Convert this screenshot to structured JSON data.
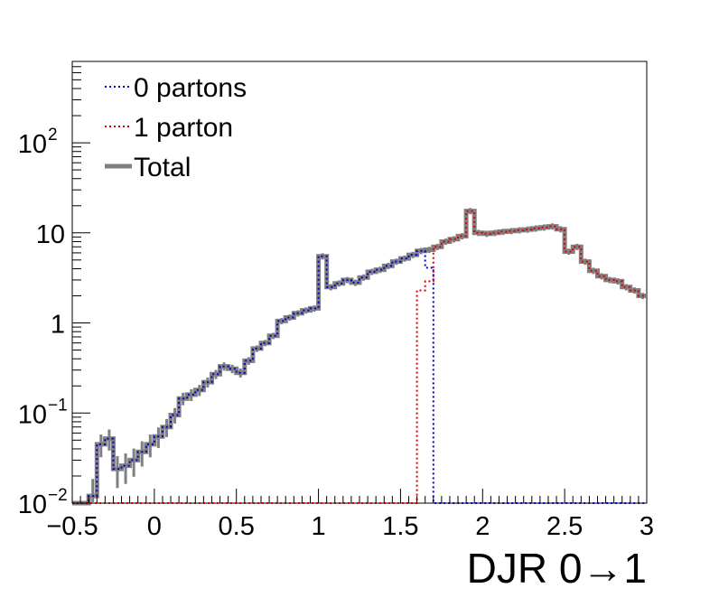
{
  "chart_data": {
    "type": "line",
    "title": "",
    "xlabel": "DJR 0→1",
    "ylabel": "",
    "xlim": [
      -0.5,
      3.0
    ],
    "ylim": [
      0.01,
      800
    ],
    "y_scale": "log",
    "grid": false,
    "legend_position": "top-left",
    "x_tick_labels": [
      "−0.5",
      "0",
      "0.5",
      "1",
      "1.5",
      "2",
      "2.5",
      "3"
    ],
    "x_tick_values": [
      -0.5,
      0,
      0.5,
      1,
      1.5,
      2,
      2.5,
      3
    ],
    "y_tick_labels": [
      {
        "value": 0.01,
        "base": "10",
        "exp": "−2"
      },
      {
        "value": 0.1,
        "base": "10",
        "exp": "−1"
      },
      {
        "value": 1,
        "base": "1",
        "exp": ""
      },
      {
        "value": 10,
        "base": "10",
        "exp": ""
      },
      {
        "value": 100,
        "base": "10",
        "exp": "2"
      }
    ],
    "bin_edges_start": -0.5,
    "bin_width": 0.05,
    "series": [
      {
        "name": "0 partons",
        "color": "#0000cc",
        "style": "dotted",
        "values": [
          0.01,
          0.01,
          0.012,
          0.045,
          0.052,
          0.024,
          0.026,
          0.03,
          0.037,
          0.045,
          0.055,
          0.07,
          0.095,
          0.145,
          0.16,
          0.18,
          0.22,
          0.27,
          0.33,
          0.31,
          0.28,
          0.38,
          0.52,
          0.6,
          0.72,
          1.05,
          1.15,
          1.28,
          1.38,
          1.45,
          5.5,
          2.5,
          2.75,
          3.0,
          2.8,
          3.2,
          3.7,
          3.9,
          4.3,
          4.8,
          5.2,
          5.7,
          6.3,
          4.1,
          0.01,
          0.01,
          0.01,
          0.01,
          0.01,
          0.01,
          0.01,
          0.01,
          0.01,
          0.01,
          0.01,
          0.01,
          0.01,
          0.01,
          0.01,
          0.01,
          0.01,
          0.01,
          0.01,
          0.01,
          0.01,
          0.01,
          0.01,
          0.01,
          0.01,
          0.01
        ]
      },
      {
        "name": "1 parton",
        "color": "#dd0000",
        "style": "dotted",
        "values": [
          0.01,
          0.01,
          0.01,
          0.01,
          0.01,
          0.01,
          0.01,
          0.01,
          0.01,
          0.01,
          0.01,
          0.01,
          0.01,
          0.01,
          0.01,
          0.01,
          0.01,
          0.01,
          0.01,
          0.01,
          0.01,
          0.01,
          0.01,
          0.01,
          0.01,
          0.01,
          0.01,
          0.01,
          0.01,
          0.01,
          0.01,
          0.01,
          0.01,
          0.01,
          0.01,
          0.01,
          0.01,
          0.01,
          0.01,
          0.01,
          0.01,
          0.01,
          2.3,
          2.9,
          7.0,
          8.0,
          8.5,
          9.2,
          17.5,
          10.0,
          9.8,
          10.0,
          10.3,
          10.5,
          10.7,
          10.9,
          11.2,
          11.5,
          11.8,
          11.0,
          10.3,
          10.8,
          10.2,
          9.5,
          8.5,
          7.8,
          7.4,
          6.5,
          6.2,
          7.0
        ]
      },
      {
        "name": "Total",
        "color": "#808080",
        "style": "solid",
        "values": [
          0.01,
          0.01,
          0.012,
          0.045,
          0.052,
          0.024,
          0.026,
          0.03,
          0.037,
          0.045,
          0.055,
          0.07,
          0.095,
          0.145,
          0.16,
          0.18,
          0.22,
          0.27,
          0.33,
          0.31,
          0.28,
          0.38,
          0.52,
          0.6,
          0.72,
          1.05,
          1.15,
          1.28,
          1.38,
          1.45,
          5.5,
          2.5,
          2.75,
          3.0,
          2.8,
          3.2,
          3.7,
          3.9,
          4.3,
          4.8,
          5.2,
          5.7,
          6.3,
          6.5,
          7.0,
          8.0,
          8.5,
          9.2,
          17.5,
          10.0,
          9.8,
          10.0,
          10.3,
          10.5,
          10.7,
          10.9,
          11.2,
          11.5,
          11.8,
          11.0,
          10.3,
          10.8,
          10.2,
          9.5,
          8.5,
          7.8,
          7.4,
          6.5,
          6.2,
          7.0
        ]
      }
    ],
    "tail_values_note_free": true,
    "tail_bins": {
      "start": 2.5,
      "values": [
        6.2,
        7.0,
        4.8,
        3.8,
        3.3,
        3.0,
        2.9,
        2.5,
        2.3,
        2.0,
        2.2,
        2.1
      ]
    }
  }
}
